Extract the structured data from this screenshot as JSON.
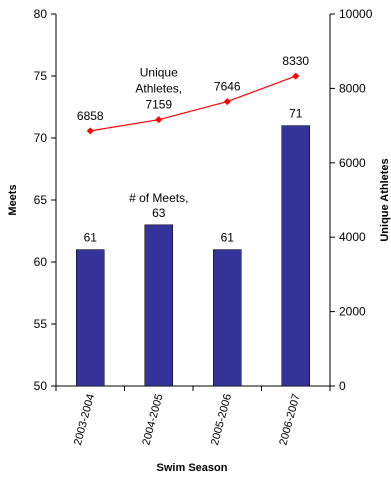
{
  "chart_data": {
    "type": "bar",
    "xlabel": "Swim Season",
    "ylabel": "Meets",
    "y2label": "Unique Athletes",
    "categories": [
      "2003-2004",
      "2004-2005",
      "2005-2006",
      "2006-2007"
    ],
    "ylim": [
      50,
      80
    ],
    "y_ticks": [
      50,
      55,
      60,
      65,
      70,
      75,
      80
    ],
    "y2lim": [
      0,
      10000
    ],
    "y2_ticks": [
      0,
      2000,
      4000,
      6000,
      8000,
      10000
    ],
    "grid": false,
    "series": [
      {
        "type": "bar",
        "axis": "left",
        "values": [
          61,
          63,
          61,
          71
        ],
        "data_labels": [
          "61",
          "# of Meets,\n63",
          "61",
          "71"
        ],
        "color": "#333399"
      },
      {
        "type": "line",
        "axis": "right",
        "values": [
          6858,
          7159,
          7646,
          8330
        ],
        "data_labels": [
          "6858",
          "Unique\nAthletes,\n7159",
          "7646",
          "8330"
        ],
        "color": "#ff0000",
        "marker": "diamond"
      }
    ]
  }
}
